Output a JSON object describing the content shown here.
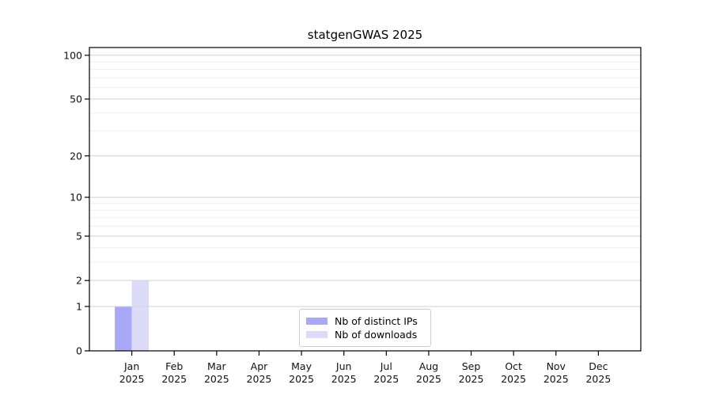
{
  "chart_data": {
    "type": "bar",
    "title": "statgenGWAS 2025",
    "categories": [
      "Jan 2025",
      "Feb 2025",
      "Mar 2025",
      "Apr 2025",
      "May 2025",
      "Jun 2025",
      "Jul 2025",
      "Aug 2025",
      "Sep 2025",
      "Oct 2025",
      "Nov 2025",
      "Dec 2025"
    ],
    "series": [
      {
        "name": "Nb of distinct IPs",
        "color": "#a8a8f6",
        "values": [
          1,
          0,
          0,
          0,
          0,
          0,
          0,
          0,
          0,
          0,
          0,
          0
        ]
      },
      {
        "name": "Nb of downloads",
        "color": "#dcdcf8",
        "values": [
          2,
          0,
          0,
          0,
          0,
          0,
          0,
          0,
          0,
          0,
          0,
          0
        ]
      }
    ],
    "yscale": "log1p",
    "ylim": [
      0,
      113
    ],
    "yticks": [
      0,
      1,
      2,
      5,
      10,
      20,
      50,
      100
    ],
    "y_minor_gridlines": [
      3,
      4,
      6,
      7,
      8,
      9,
      30,
      40,
      60,
      70,
      80,
      90
    ],
    "grid": "horizontal, major and minor, no vertical gridlines",
    "legend_position": "lower center inside plot",
    "xlabel": "",
    "ylabel": "",
    "colors": {
      "grid_major": "#d2d2d2",
      "grid_minor": "#ededed",
      "axis": "#000000",
      "tick_label": "#111111",
      "background": "#ffffff"
    }
  }
}
